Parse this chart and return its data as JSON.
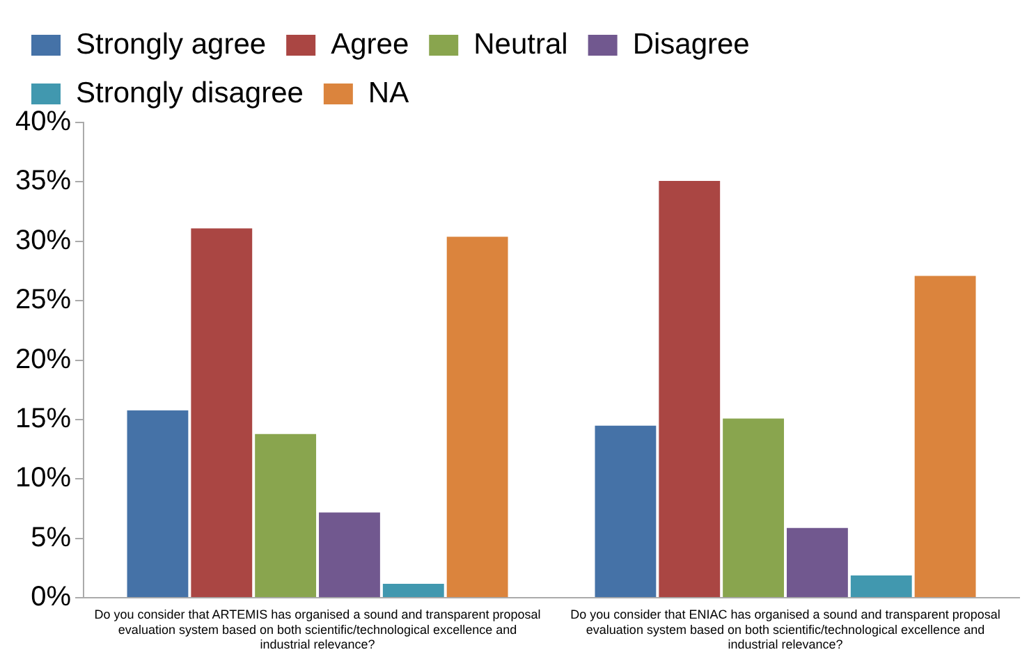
{
  "chart_data": {
    "type": "bar",
    "categories": [
      "Do you consider that ARTEMIS has organised a sound and transparent proposal evaluation system based on both scientific/technological excellence and industrial relevance?",
      "Do you consider that ENIAC has organised a sound and transparent proposal evaluation system based on both scientific/technological excellence and industrial relevance?"
    ],
    "series": [
      {
        "name": "Strongly agree",
        "color": "#4572a7",
        "values": [
          15.9,
          14.6
        ]
      },
      {
        "name": "Agree",
        "color": "#aa4643",
        "values": [
          31.2,
          35.2
        ]
      },
      {
        "name": "Neutral",
        "color": "#89a54e",
        "values": [
          13.9,
          15.2
        ]
      },
      {
        "name": "Disagree",
        "color": "#71588f",
        "values": [
          7.3,
          6.0
        ]
      },
      {
        "name": "Strongly disagree",
        "color": "#4198af",
        "values": [
          1.3,
          2.0
        ]
      },
      {
        "name": "NA",
        "color": "#db843d",
        "values": [
          30.5,
          27.2
        ]
      }
    ],
    "ylim": [
      0,
      40
    ],
    "yticks": [
      {
        "value": 0,
        "label": "0%"
      },
      {
        "value": 5,
        "label": "5%"
      },
      {
        "value": 10,
        "label": "10%"
      },
      {
        "value": 15,
        "label": "15%"
      },
      {
        "value": 20,
        "label": "20%"
      },
      {
        "value": 25,
        "label": "25%"
      },
      {
        "value": 30,
        "label": "30%"
      },
      {
        "value": 35,
        "label": "35%"
      },
      {
        "value": 40,
        "label": "40%"
      }
    ],
    "grid": false,
    "legend": "top"
  }
}
